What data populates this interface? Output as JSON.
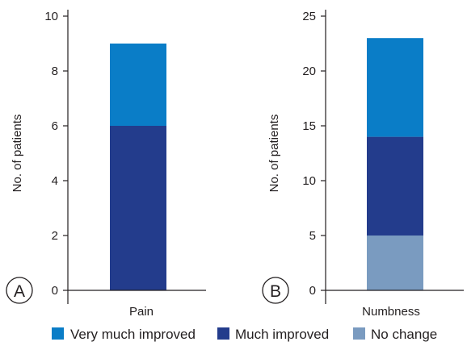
{
  "colors": {
    "very_much_improved": "#0a7dc7",
    "much_improved": "#233c8c",
    "no_change": "#7a9bc0",
    "axis": "#231f20"
  },
  "legend": {
    "items": [
      {
        "label": "Very much improved",
        "color_key": "very_much_improved"
      },
      {
        "label": "Much improved",
        "color_key": "much_improved"
      },
      {
        "label": "No change",
        "color_key": "no_change"
      }
    ]
  },
  "chart_data": [
    {
      "type": "bar",
      "stacked": true,
      "panel_label": "A",
      "categories": [
        "Pain"
      ],
      "ylabel": "No. of patients",
      "ylim": [
        0,
        10
      ],
      "yticks": [
        0,
        2,
        4,
        6,
        8,
        10
      ],
      "series": [
        {
          "name": "No change",
          "color_key": "no_change",
          "values": [
            0
          ]
        },
        {
          "name": "Much improved",
          "color_key": "much_improved",
          "values": [
            6
          ]
        },
        {
          "name": "Very much improved",
          "color_key": "very_much_improved",
          "values": [
            3
          ]
        }
      ]
    },
    {
      "type": "bar",
      "stacked": true,
      "panel_label": "B",
      "categories": [
        "Numbness"
      ],
      "ylabel": "No. of patients",
      "ylim": [
        0,
        25
      ],
      "yticks": [
        0,
        5,
        10,
        15,
        20,
        25
      ],
      "series": [
        {
          "name": "No change",
          "color_key": "no_change",
          "values": [
            5
          ]
        },
        {
          "name": "Much improved",
          "color_key": "much_improved",
          "values": [
            9
          ]
        },
        {
          "name": "Very much improved",
          "color_key": "very_much_improved",
          "values": [
            9
          ]
        }
      ]
    }
  ]
}
